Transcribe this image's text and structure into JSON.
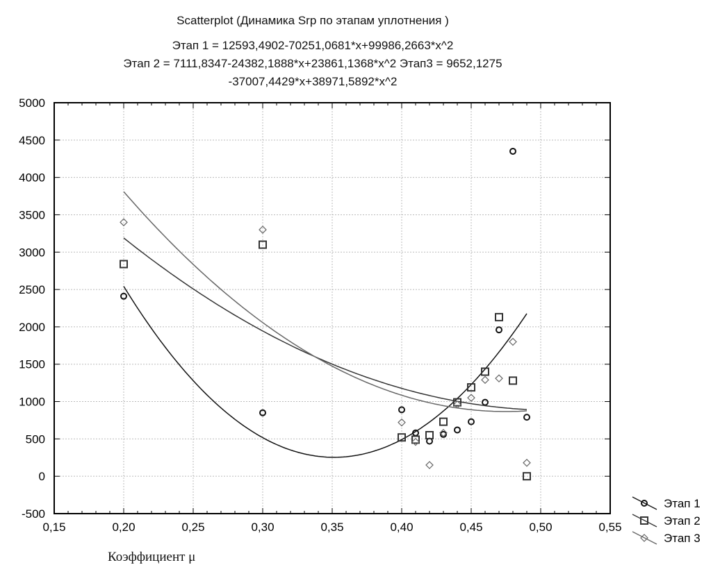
{
  "chart_data": {
    "type": "scatter",
    "title": "Scatterplot (Динамика Srp  по этапам уплотнения )",
    "equations": [
      "Этап 1 = 12593,4902-70251,0681*x+99986,2663*x^2",
      "Этап 2 = 7111,8347-24382,1888*x+23861,1368*x^2    Этап3 = 9652,1275",
      "-37007,4429*x+38971,5892*x^2"
    ],
    "xlabel": "Коэффициент μ",
    "ylabel": "",
    "xlim": [
      0.15,
      0.55
    ],
    "ylim": [
      -500,
      5000
    ],
    "xticks": [
      "0,15",
      "0,20",
      "0,25",
      "0,30",
      "0,35",
      "0,40",
      "0,45",
      "0,50",
      "0,55"
    ],
    "yticks": [
      "-500",
      "0",
      "500",
      "1000",
      "1500",
      "2000",
      "2500",
      "3000",
      "3500",
      "4000",
      "4500",
      "5000"
    ],
    "grid": true,
    "legend_position": "bottom-right",
    "series": [
      {
        "name": "Этап 1",
        "marker": "circle",
        "color": "#111111",
        "fit": [
          12593.4902,
          -70251.0681,
          99986.2663
        ],
        "x": [
          0.2,
          0.3,
          0.4,
          0.41,
          0.42,
          0.43,
          0.44,
          0.45,
          0.46,
          0.47,
          0.48,
          0.49
        ],
        "y": [
          2410,
          850,
          890,
          580,
          470,
          560,
          620,
          730,
          990,
          1960,
          4350,
          790
        ]
      },
      {
        "name": "Этап 2",
        "marker": "square",
        "color": "#333333",
        "fit": [
          7111.8347,
          -24382.1888,
          23861.1368
        ],
        "x": [
          0.2,
          0.3,
          0.4,
          0.41,
          0.42,
          0.43,
          0.44,
          0.45,
          0.46,
          0.47,
          0.48,
          0.49
        ],
        "y": [
          2840,
          3100,
          520,
          490,
          550,
          730,
          990,
          1190,
          1400,
          2130,
          1280,
          0
        ]
      },
      {
        "name": "Этап 3",
        "marker": "diamond",
        "color": "#666666",
        "fit": [
          9652.1275,
          -37007.4429,
          38971.5892
        ],
        "x": [
          0.2,
          0.3,
          0.4,
          0.41,
          0.42,
          0.43,
          0.44,
          0.45,
          0.46,
          0.47,
          0.48,
          0.49
        ],
        "y": [
          3400,
          3300,
          720,
          460,
          150,
          580,
          960,
          1050,
          1290,
          1310,
          1800,
          180
        ]
      }
    ]
  }
}
